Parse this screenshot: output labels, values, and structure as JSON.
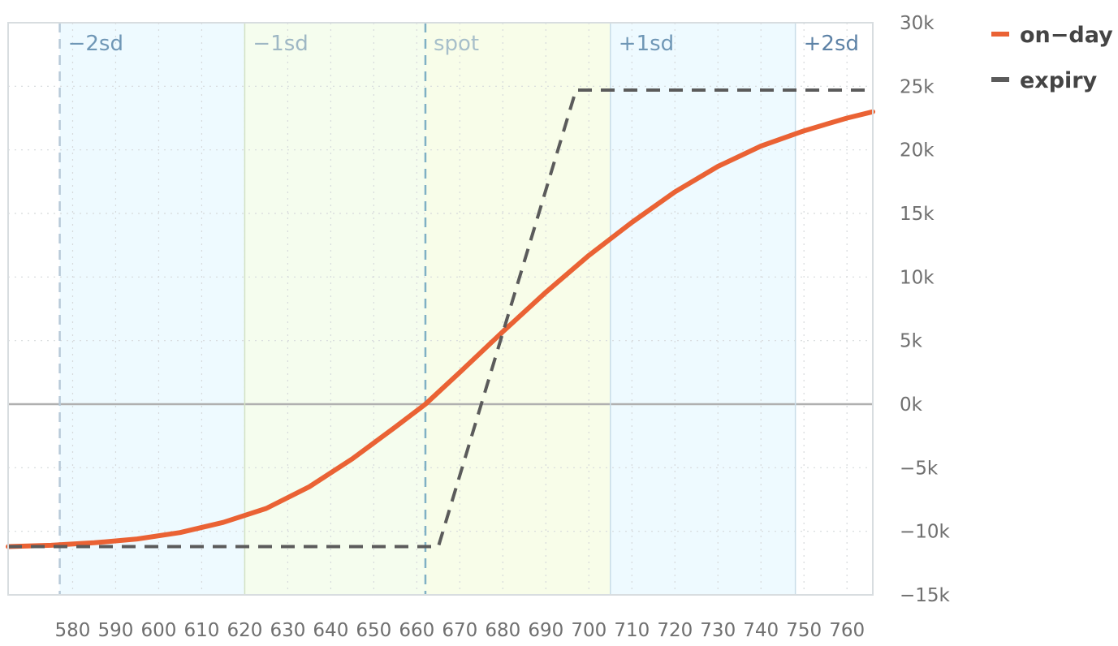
{
  "chart_data": {
    "type": "line",
    "xlim": [
      565,
      766
    ],
    "ylim": [
      -15000,
      30000
    ],
    "x_ticks": [
      580,
      590,
      600,
      610,
      620,
      630,
      640,
      650,
      660,
      670,
      680,
      690,
      700,
      710,
      720,
      730,
      740,
      750,
      760
    ],
    "y_ticks": [
      {
        "value": 30000,
        "label": "30k"
      },
      {
        "value": 25000,
        "label": "25k"
      },
      {
        "value": 20000,
        "label": "20k"
      },
      {
        "value": 15000,
        "label": "15k"
      },
      {
        "value": 10000,
        "label": "10k"
      },
      {
        "value": 5000,
        "label": "5k"
      },
      {
        "value": 0,
        "label": "0k"
      },
      {
        "value": -5000,
        "label": "−5k"
      },
      {
        "value": -10000,
        "label": "−10k"
      },
      {
        "value": -15000,
        "label": "−15k"
      }
    ],
    "zero_line": 0,
    "grid": true,
    "legend_position": "top-right",
    "bands": [
      {
        "from": 565,
        "to": 577,
        "color": "#ffffff"
      },
      {
        "from": 577,
        "to": 620,
        "color": "#eefaff"
      },
      {
        "from": 620,
        "to": 662,
        "color": "#f5fdee"
      },
      {
        "from": 662,
        "to": 705,
        "color": "#f8fde9"
      },
      {
        "from": 705,
        "to": 748,
        "color": "#eefaff"
      },
      {
        "from": 748,
        "to": 766,
        "color": "#ffffff"
      }
    ],
    "markers": [
      {
        "label": "−2sd",
        "x": 577,
        "line_color": "#b7c9d8",
        "text_color": "#6f97b6",
        "style": "dashed"
      },
      {
        "label": "−1sd",
        "x": 620,
        "line_color": "#d3e1c3",
        "text_color": "#9eb7c4",
        "style": "solid"
      },
      {
        "label": "spot",
        "x": 662,
        "line_color": "#7fb0c4",
        "text_color": "#a7bfca",
        "style": "dashed"
      },
      {
        "label": "+1sd",
        "x": 705,
        "line_color": "#c9dde8",
        "text_color": "#6f97b6",
        "style": "solid"
      },
      {
        "label": "+2sd",
        "x": 748,
        "line_color": "#c9dde8",
        "text_color": "#5d82a6",
        "style": "solid"
      }
    ],
    "series": [
      {
        "name": "on−day",
        "color": "#ea6234",
        "style": "solid",
        "x": [
          565,
          575,
          585,
          595,
          605,
          615,
          625,
          635,
          645,
          655,
          662,
          670,
          680,
          690,
          700,
          710,
          720,
          730,
          740,
          750,
          760,
          766
        ],
        "y": [
          -11200,
          -11100,
          -10900,
          -10600,
          -10100,
          -9300,
          -8200,
          -6500,
          -4300,
          -1800,
          0,
          2500,
          5700,
          8800,
          11700,
          14300,
          16700,
          18700,
          20300,
          21500,
          22500,
          23000
        ]
      },
      {
        "name": "expiry",
        "color": "#5b5b5b",
        "style": "dashed",
        "x": [
          565,
          665,
          697,
          766
        ],
        "y": [
          -11200,
          -11200,
          24700,
          24700
        ]
      }
    ]
  }
}
